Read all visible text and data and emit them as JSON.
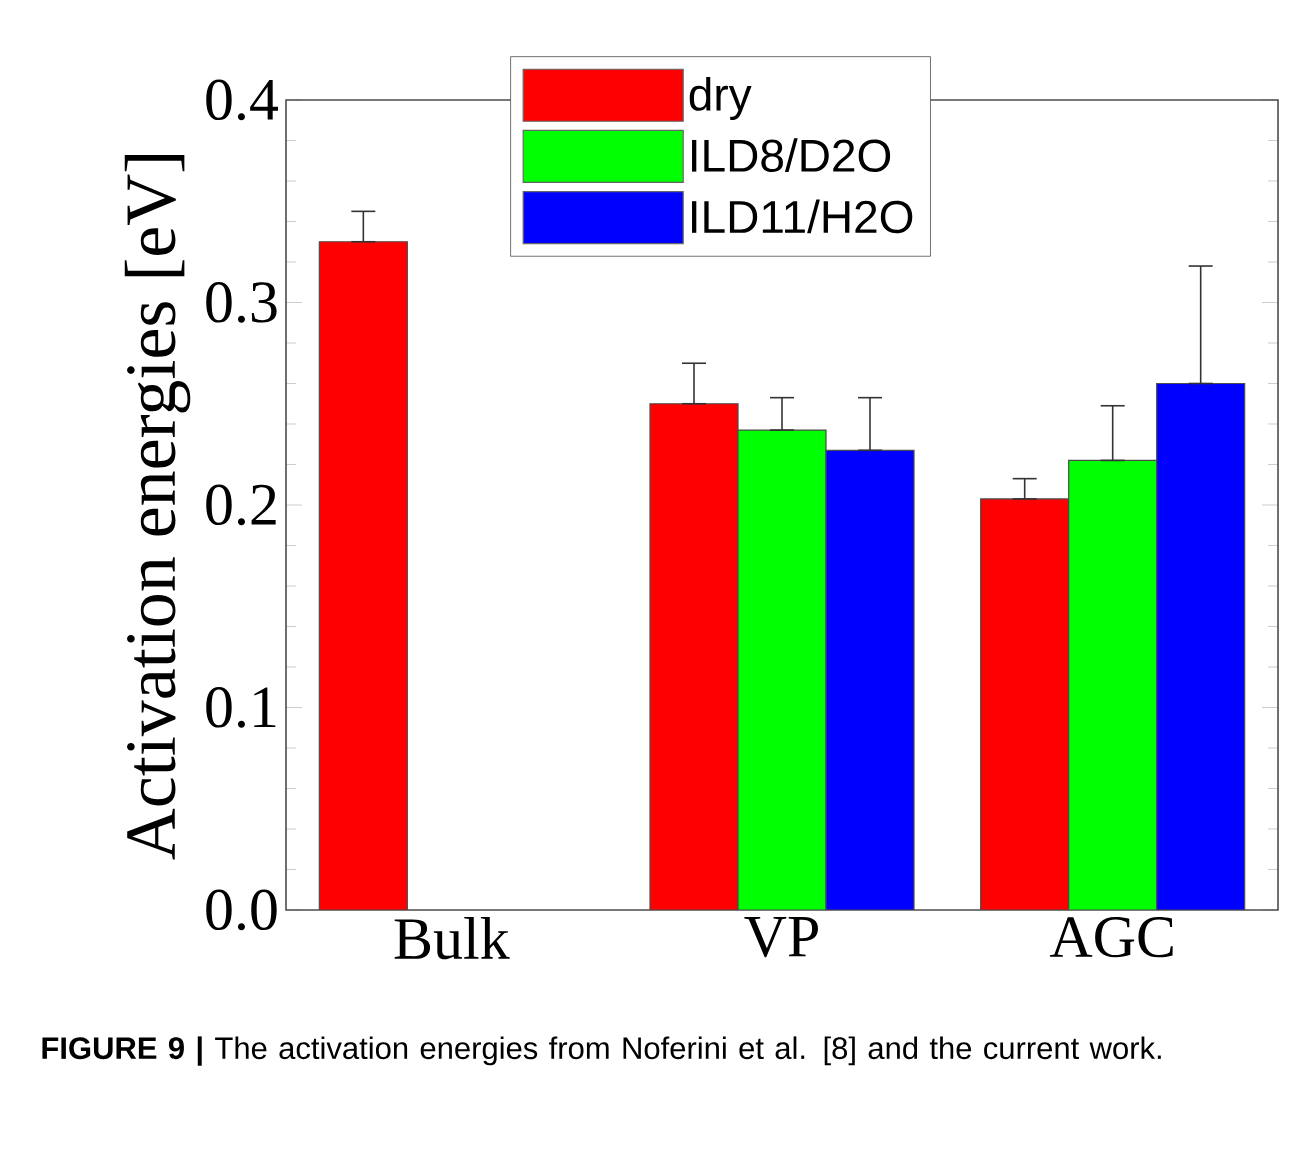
{
  "chart_data": {
    "type": "bar",
    "ylabel": "Activation energies [eV]",
    "categories": [
      "Bulk",
      "VP",
      "AGC"
    ],
    "series": [
      {
        "name": "dry",
        "color": "#ff0000",
        "values": [
          0.33,
          0.25,
          0.203
        ],
        "errors": [
          [
            0.33,
            0.345
          ],
          [
            0.25,
            0.27
          ],
          [
            0.203,
            0.213
          ]
        ]
      },
      {
        "name": "ILD8/D2O",
        "color": "#00ff00",
        "values": [
          null,
          0.237,
          0.222
        ],
        "errors": [
          null,
          [
            0.237,
            0.253
          ],
          [
            0.222,
            0.249
          ]
        ]
      },
      {
        "name": "ILD11/H2O",
        "color": "#0000ff",
        "values": [
          null,
          0.227,
          0.26
        ],
        "errors": [
          null,
          [
            0.227,
            0.253
          ],
          [
            0.26,
            0.318
          ]
        ]
      }
    ],
    "ylim": [
      0,
      0.4
    ],
    "yticks": [
      {
        "value": 0,
        "label": "0.0"
      },
      {
        "value": 0.1,
        "label": "0.1"
      },
      {
        "value": 0.2,
        "label": "0.2"
      },
      {
        "value": 0.3,
        "label": "0.3"
      },
      {
        "value": 0.4,
        "label": "0.4"
      }
    ],
    "grid": false,
    "legend": "top",
    "annotations": [
      "**FIGURE 9 |** The activation energies from Noferini et al. [8] and the current work."
    ]
  }
}
